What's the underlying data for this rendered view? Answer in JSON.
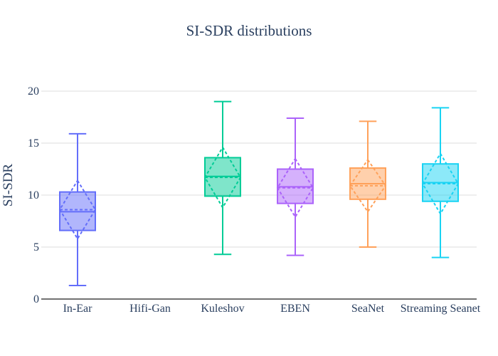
{
  "chart_data": {
    "type": "box",
    "title": "SI-SDR distributions",
    "xlabel": "",
    "ylabel": "SI-SDR",
    "ylim": [
      0,
      22
    ],
    "yticks": [
      0,
      5,
      10,
      15,
      20
    ],
    "grid": true,
    "legend": "none",
    "categories": [
      "In-Ear",
      "Hifi-Gan",
      "Kuleshov",
      "EBEN",
      "SeaNet",
      "Streaming Seanet"
    ],
    "series": [
      {
        "category": "In-Ear",
        "color": "#636efa",
        "min": 1.3,
        "q1": 6.6,
        "median": 8.4,
        "q3": 10.3,
        "max": 15.9,
        "mean": 8.6,
        "sd": 2.8
      },
      {
        "category": "Hifi-Gan",
        "color": "#ef553b",
        "min": null,
        "q1": null,
        "median": null,
        "q3": null,
        "max": null,
        "mean": null,
        "sd": null
      },
      {
        "category": "Kuleshov",
        "color": "#00cc96",
        "min": 4.3,
        "q1": 9.9,
        "median": 11.8,
        "q3": 13.6,
        "max": 19.0,
        "mean": 11.7,
        "sd": 2.9
      },
      {
        "category": "EBEN",
        "color": "#ab63fa",
        "min": 4.2,
        "q1": 9.2,
        "median": 10.8,
        "q3": 12.5,
        "max": 17.4,
        "mean": 10.7,
        "sd": 2.8
      },
      {
        "category": "SeaNet",
        "color": "#ffa15a",
        "min": 5.0,
        "q1": 9.6,
        "median": 11.1,
        "q3": 12.6,
        "max": 17.1,
        "mean": 10.9,
        "sd": 2.5
      },
      {
        "category": "Streaming Seanet",
        "color": "#19d3f3",
        "min": 4.0,
        "q1": 9.4,
        "median": 11.2,
        "q3": 13.0,
        "max": 18.4,
        "mean": 11.1,
        "sd": 2.9
      }
    ]
  }
}
